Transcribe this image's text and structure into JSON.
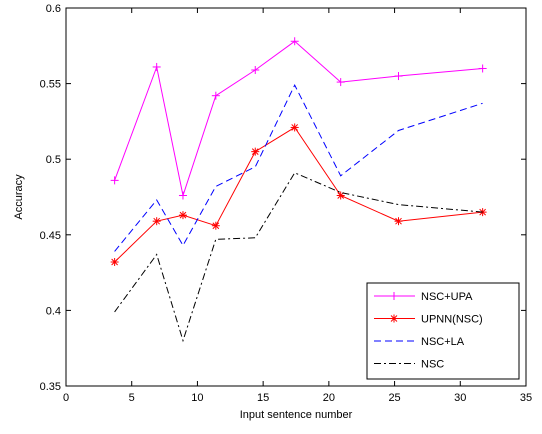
{
  "chart_data": {
    "type": "line",
    "title": "",
    "xlabel": "Input sentence number",
    "ylabel": "Accuracy",
    "xlim": [
      0,
      35
    ],
    "ylim": [
      0.35,
      0.6
    ],
    "xticks": [
      "0",
      "5",
      "10",
      "15",
      "20",
      "25",
      "30",
      "35"
    ],
    "yticks": [
      "0.35",
      "0.4",
      "0.45",
      "0.5",
      "0.55",
      "0.6"
    ],
    "grid": false,
    "legend_position": "bottom-right",
    "x": [
      3.7,
      6.9,
      8.9,
      11.4,
      14.4,
      17.4,
      20.9,
      25.3,
      31.7
    ],
    "series": [
      {
        "name": "NSC+UPA",
        "color": "#ff00ff",
        "line": "solid",
        "marker": "plus",
        "values": [
          0.486,
          0.561,
          0.476,
          0.542,
          0.559,
          0.578,
          0.551,
          0.555,
          0.56
        ]
      },
      {
        "name": "UPNN(NSC)",
        "color": "#ff0000",
        "line": "solid",
        "marker": "asterisk",
        "values": [
          0.432,
          0.459,
          0.463,
          0.456,
          0.505,
          0.521,
          0.476,
          0.459,
          0.465
        ]
      },
      {
        "name": "NSC+LA",
        "color": "#0000ff",
        "line": "dashed",
        "marker": "none",
        "values": [
          0.439,
          0.473,
          0.443,
          0.482,
          0.495,
          0.549,
          0.489,
          0.519,
          0.537
        ]
      },
      {
        "name": "NSC",
        "color": "#000000",
        "line": "dashdot",
        "marker": "none",
        "values": [
          0.399,
          0.437,
          0.38,
          0.447,
          0.448,
          0.491,
          0.478,
          0.47,
          0.465
        ]
      }
    ]
  }
}
